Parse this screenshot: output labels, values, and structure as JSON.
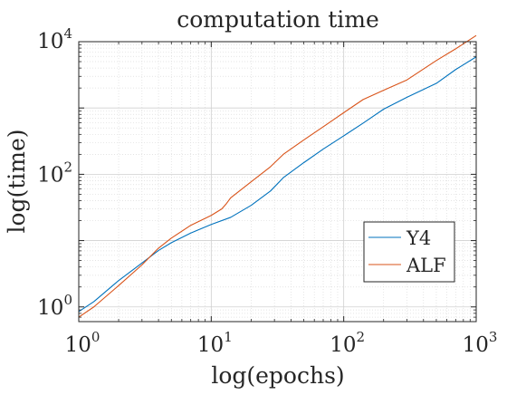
{
  "chart_data": {
    "type": "line",
    "title": "computation time",
    "xlabel": "log(epochs)",
    "ylabel": "log(time)",
    "x_scale": "log",
    "y_scale": "log",
    "xlim": [
      1,
      1000
    ],
    "ylim": [
      0.6,
      10000
    ],
    "grid": true,
    "minor_grid": true,
    "legend_position": "bottom-right",
    "x_ticks": [
      {
        "base": "10",
        "exp": "0",
        "value": 1
      },
      {
        "base": "10",
        "exp": "1",
        "value": 10
      },
      {
        "base": "10",
        "exp": "2",
        "value": 100
      },
      {
        "base": "10",
        "exp": "3",
        "value": 1000
      }
    ],
    "y_ticks": [
      {
        "base": "10",
        "exp": "0",
        "value": 1
      },
      {
        "base": "10",
        "exp": "2",
        "value": 100
      },
      {
        "base": "10",
        "exp": "4",
        "value": 10000
      }
    ],
    "series": [
      {
        "name": "Y4",
        "color": "#0072BD",
        "x": [
          1,
          1.3,
          2,
          3,
          4,
          5,
          7,
          10,
          14,
          20,
          28,
          35,
          50,
          70,
          100,
          140,
          200,
          300,
          500,
          700,
          1000
        ],
        "y": [
          0.85,
          1.2,
          2.5,
          4.6,
          7.1,
          9.3,
          13,
          17.5,
          22.4,
          34,
          56,
          89,
          150,
          240,
          380,
          590,
          960,
          1450,
          2350,
          3800,
          5900
        ]
      },
      {
        "name": "ALF",
        "color": "#D95319",
        "x": [
          1,
          1.3,
          2,
          3,
          4,
          5,
          7,
          10,
          12,
          13,
          14,
          20,
          28,
          35,
          50,
          70,
          100,
          140,
          200,
          300,
          500,
          700,
          1000
        ],
        "y": [
          0.7,
          1.0,
          2.1,
          4.3,
          7.7,
          10.9,
          17,
          24,
          30,
          36,
          44,
          77,
          130,
          200,
          330,
          520,
          850,
          1340,
          1850,
          2650,
          5200,
          7800,
          12400
        ]
      }
    ]
  }
}
